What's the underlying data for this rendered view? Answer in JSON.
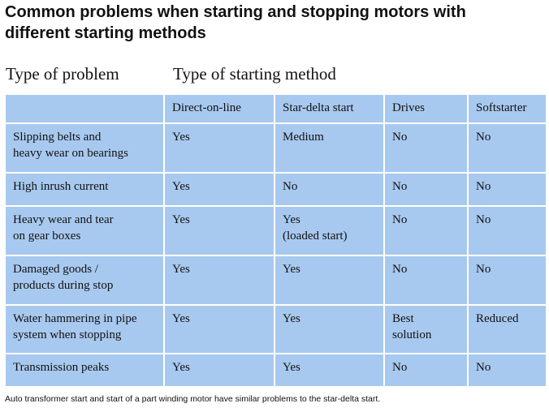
{
  "title": {
    "line1": "Common problems when starting and stopping motors with",
    "line2": "different starting methods"
  },
  "labels": {
    "problem_type": "Type of problem",
    "starting_method": "Type of starting method"
  },
  "table": {
    "headers": [
      "",
      "Direct-on-line",
      "Star-delta start",
      "Drives",
      "Softstarter"
    ],
    "rows": [
      {
        "problem": [
          "Slipping belts and",
          "heavy wear on bearings"
        ],
        "cells": [
          [
            "Yes"
          ],
          [
            "Medium"
          ],
          [
            "No"
          ],
          [
            "No"
          ]
        ]
      },
      {
        "problem": [
          "High inrush current"
        ],
        "cells": [
          [
            "Yes"
          ],
          [
            "No"
          ],
          [
            "No"
          ],
          [
            "No"
          ]
        ]
      },
      {
        "problem": [
          "Heavy wear and tear",
          "on gear boxes"
        ],
        "cells": [
          [
            "Yes"
          ],
          [
            "Yes",
            "(loaded start)"
          ],
          [
            "No"
          ],
          [
            "No"
          ]
        ]
      },
      {
        "problem": [
          "Damaged goods /",
          "products during stop"
        ],
        "cells": [
          [
            "Yes"
          ],
          [
            "Yes"
          ],
          [
            "No"
          ],
          [
            "No"
          ]
        ]
      },
      {
        "problem": [
          "Water hammering in pipe",
          "system when stopping"
        ],
        "cells": [
          [
            "Yes"
          ],
          [
            "Yes"
          ],
          [
            "Best",
            "solution"
          ],
          [
            "Reduced"
          ]
        ]
      },
      {
        "problem": [
          "Transmission peaks"
        ],
        "cells": [
          [
            "Yes"
          ],
          [
            "Yes"
          ],
          [
            "No"
          ],
          [
            "No"
          ]
        ]
      }
    ]
  },
  "footnote": "Auto transformer start and start of a part winding motor have similar problems to the star-delta start.",
  "colors": {
    "table_background": "#a8c9ef",
    "grid_lines": "#ffffff",
    "text": "#111111"
  }
}
